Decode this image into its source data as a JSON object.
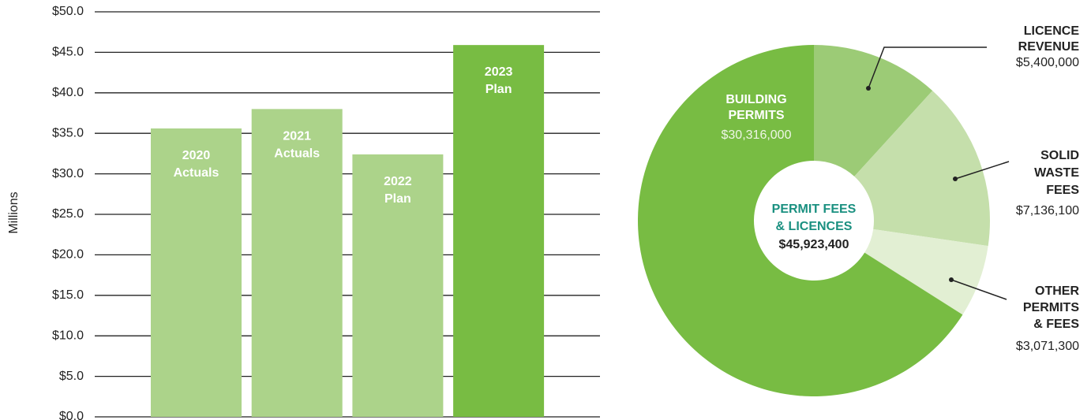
{
  "chart_data": [
    {
      "type": "bar",
      "y_label": "Millions",
      "categories": [
        "2020 Actuals",
        "2021 Actuals",
        "2022 Plan",
        "2023 Plan"
      ],
      "values": [
        35.6,
        38.0,
        32.4,
        45.9
      ],
      "colors": [
        "#acd38a",
        "#acd38a",
        "#acd38a",
        "#78bc43"
      ],
      "ylim": [
        0,
        50
      ],
      "yticks": [
        {
          "value": 0,
          "label": "$0.0"
        },
        {
          "value": 5,
          "label": "$5.0"
        },
        {
          "value": 10,
          "label": "$10.0"
        },
        {
          "value": 15,
          "label": "$15.0"
        },
        {
          "value": 20,
          "label": "$20.0"
        },
        {
          "value": 25,
          "label": "$25.0"
        },
        {
          "value": 30,
          "label": "$30.0"
        },
        {
          "value": 35,
          "label": "$35.0"
        },
        {
          "value": 40,
          "label": "$40.0"
        },
        {
          "value": 45,
          "label": "$45.0"
        },
        {
          "value": 50,
          "label": "$50.0"
        }
      ],
      "grid": true
    },
    {
      "type": "donut",
      "center_title": "PERMIT FEES & LICENCES",
      "center_value": "$45,923,400",
      "categories": [
        "LICENCE REVENUE",
        "SOLID WASTE FEES",
        "OTHER PERMITS & FEES",
        "BUILDING PERMITS"
      ],
      "values": [
        5400000,
        7136100,
        3071300,
        30316000
      ],
      "value_labels": [
        "$5,400,000",
        "$7,136,100",
        "$3,071,300",
        "$30,316,000"
      ],
      "colors": [
        "#9ccb76",
        "#c5dfab",
        "#e2efd3",
        "#78bc43"
      ]
    }
  ]
}
